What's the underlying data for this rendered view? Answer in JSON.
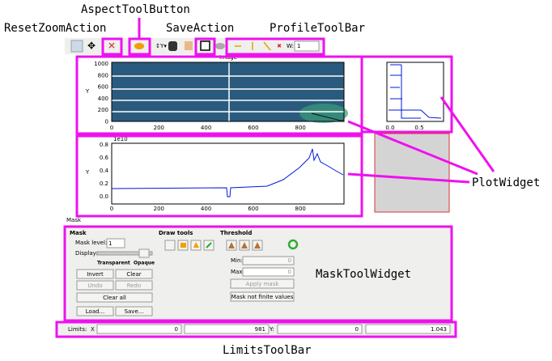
{
  "annotations": {
    "aspect_tool_button": "AspectToolButton",
    "reset_zoom_action": "ResetZoomAction",
    "save_action": "SaveAction",
    "profile_toolbar": "ProfileToolBar",
    "plot_widget": "PlotWidget",
    "mask_tool_widget": "MaskToolWidget",
    "limits_toolbar": "LimitsToolBar"
  },
  "toolbar": {
    "width_label": "W:",
    "width_value": "1"
  },
  "image_plot": {
    "title": "Image",
    "y_label": "Y",
    "yticks": [
      "1000",
      "800",
      "600",
      "400",
      "200",
      "0"
    ],
    "xticks": [
      "0",
      "200",
      "400",
      "600",
      "800"
    ]
  },
  "profile_plot": {
    "offset": "1e10",
    "y_label": "Y",
    "yticks": [
      "0.8",
      "0.6",
      "0.4",
      "0.2",
      "0.0"
    ],
    "xticks": [
      "0",
      "200",
      "400",
      "600",
      "800"
    ]
  },
  "side_plot": {
    "xticks": [
      "0.0",
      "0.5"
    ]
  },
  "mask_panel": {
    "dock_title": "Mask",
    "group_title": "Mask",
    "mask_level_label": "Mask level:",
    "mask_level_value": "1",
    "display_label": "Display:",
    "transparent": "Transparent",
    "opaque": "Opaque",
    "buttons": [
      "Invert",
      "Clear",
      "Undo",
      "Redo",
      "Clear all",
      "Load...",
      "Save..."
    ],
    "draw_tools": "Draw tools",
    "threshold": "Threshold",
    "min_label": "Min:",
    "min_value": "0",
    "max_label": "Max:",
    "max_value": "0",
    "apply_mask": "Apply mask",
    "mask_not_finite": "Mask not finite values"
  },
  "limits": {
    "label": "Limits:",
    "x_label": "X",
    "x_min": "0",
    "x_max": "981",
    "y_label": "Y:",
    "y_min": "0",
    "y_max": "1.043"
  }
}
